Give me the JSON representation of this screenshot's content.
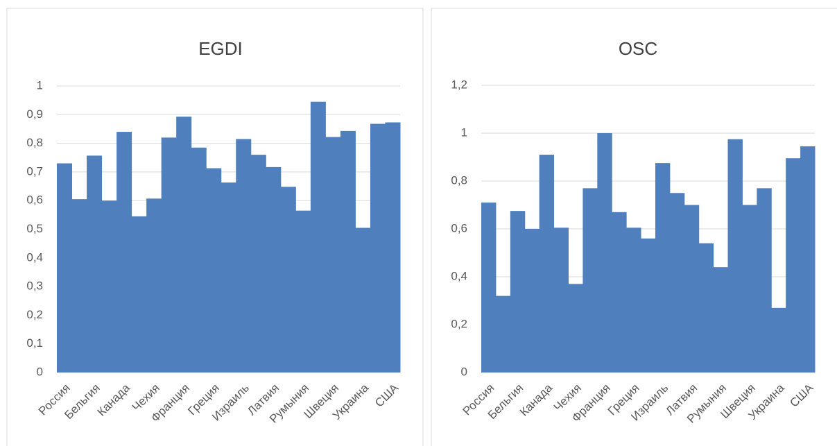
{
  "chart_data": [
    {
      "type": "bar",
      "title": "EGDI",
      "categories": [
        "Россия",
        null,
        "Бельгия",
        null,
        "Канада",
        null,
        "Чехия",
        null,
        "Франция",
        null,
        "Греция",
        null,
        "Израиль",
        null,
        "Латвия",
        null,
        "Румыния",
        null,
        "Швеция",
        null,
        "Украина",
        null,
        "США"
      ],
      "values": [
        0.73,
        0.605,
        0.757,
        0.6,
        0.84,
        0.545,
        0.607,
        0.82,
        0.893,
        0.785,
        0.713,
        0.663,
        0.815,
        0.76,
        0.717,
        0.648,
        0.565,
        0.945,
        0.822,
        0.843,
        0.505,
        0.868,
        0.873
      ],
      "color": "#4f80bd",
      "ylim": [
        0,
        1
      ],
      "yticks": [
        0,
        {
          "value": 0.1,
          "label": "0,1"
        },
        {
          "value": 0.2,
          "label": "0,2"
        },
        {
          "value": 0.3,
          "label": "0,3"
        },
        {
          "value": 0.4,
          "label": "0,4"
        },
        {
          "value": 0.5,
          "label": "0,5"
        },
        {
          "value": 0.6,
          "label": "0,6"
        },
        {
          "value": 0.7,
          "label": "0,7"
        },
        {
          "value": 0.8,
          "label": "0,8"
        },
        {
          "value": 0.9,
          "label": "0,9"
        },
        1
      ],
      "grid": true
    },
    {
      "type": "bar",
      "title": "OSC",
      "categories": [
        "Россия",
        null,
        "Бельгия",
        null,
        "Канада",
        null,
        "Чехия",
        null,
        "Франция",
        null,
        "Греция",
        null,
        "Израиль",
        null,
        "Латвия",
        null,
        "Румыния",
        null,
        "Швеция",
        null,
        "Украина",
        null,
        "США"
      ],
      "values": [
        0.71,
        0.32,
        0.675,
        0.6,
        0.91,
        0.605,
        0.37,
        0.77,
        1.0,
        0.67,
        0.605,
        0.56,
        0.875,
        0.75,
        0.7,
        0.54,
        0.44,
        0.975,
        0.7,
        0.77,
        0.27,
        0.895,
        0.945
      ],
      "color": "#4f80bd",
      "ylim": [
        0,
        1.2
      ],
      "yticks": [
        0,
        {
          "value": 0.2,
          "label": "0,2"
        },
        {
          "value": 0.4,
          "label": "0,4"
        },
        {
          "value": 0.6,
          "label": "0,6"
        },
        {
          "value": 0.8,
          "label": "0,8"
        },
        1,
        {
          "value": 1.2,
          "label": "1,2"
        }
      ],
      "grid": true
    }
  ]
}
